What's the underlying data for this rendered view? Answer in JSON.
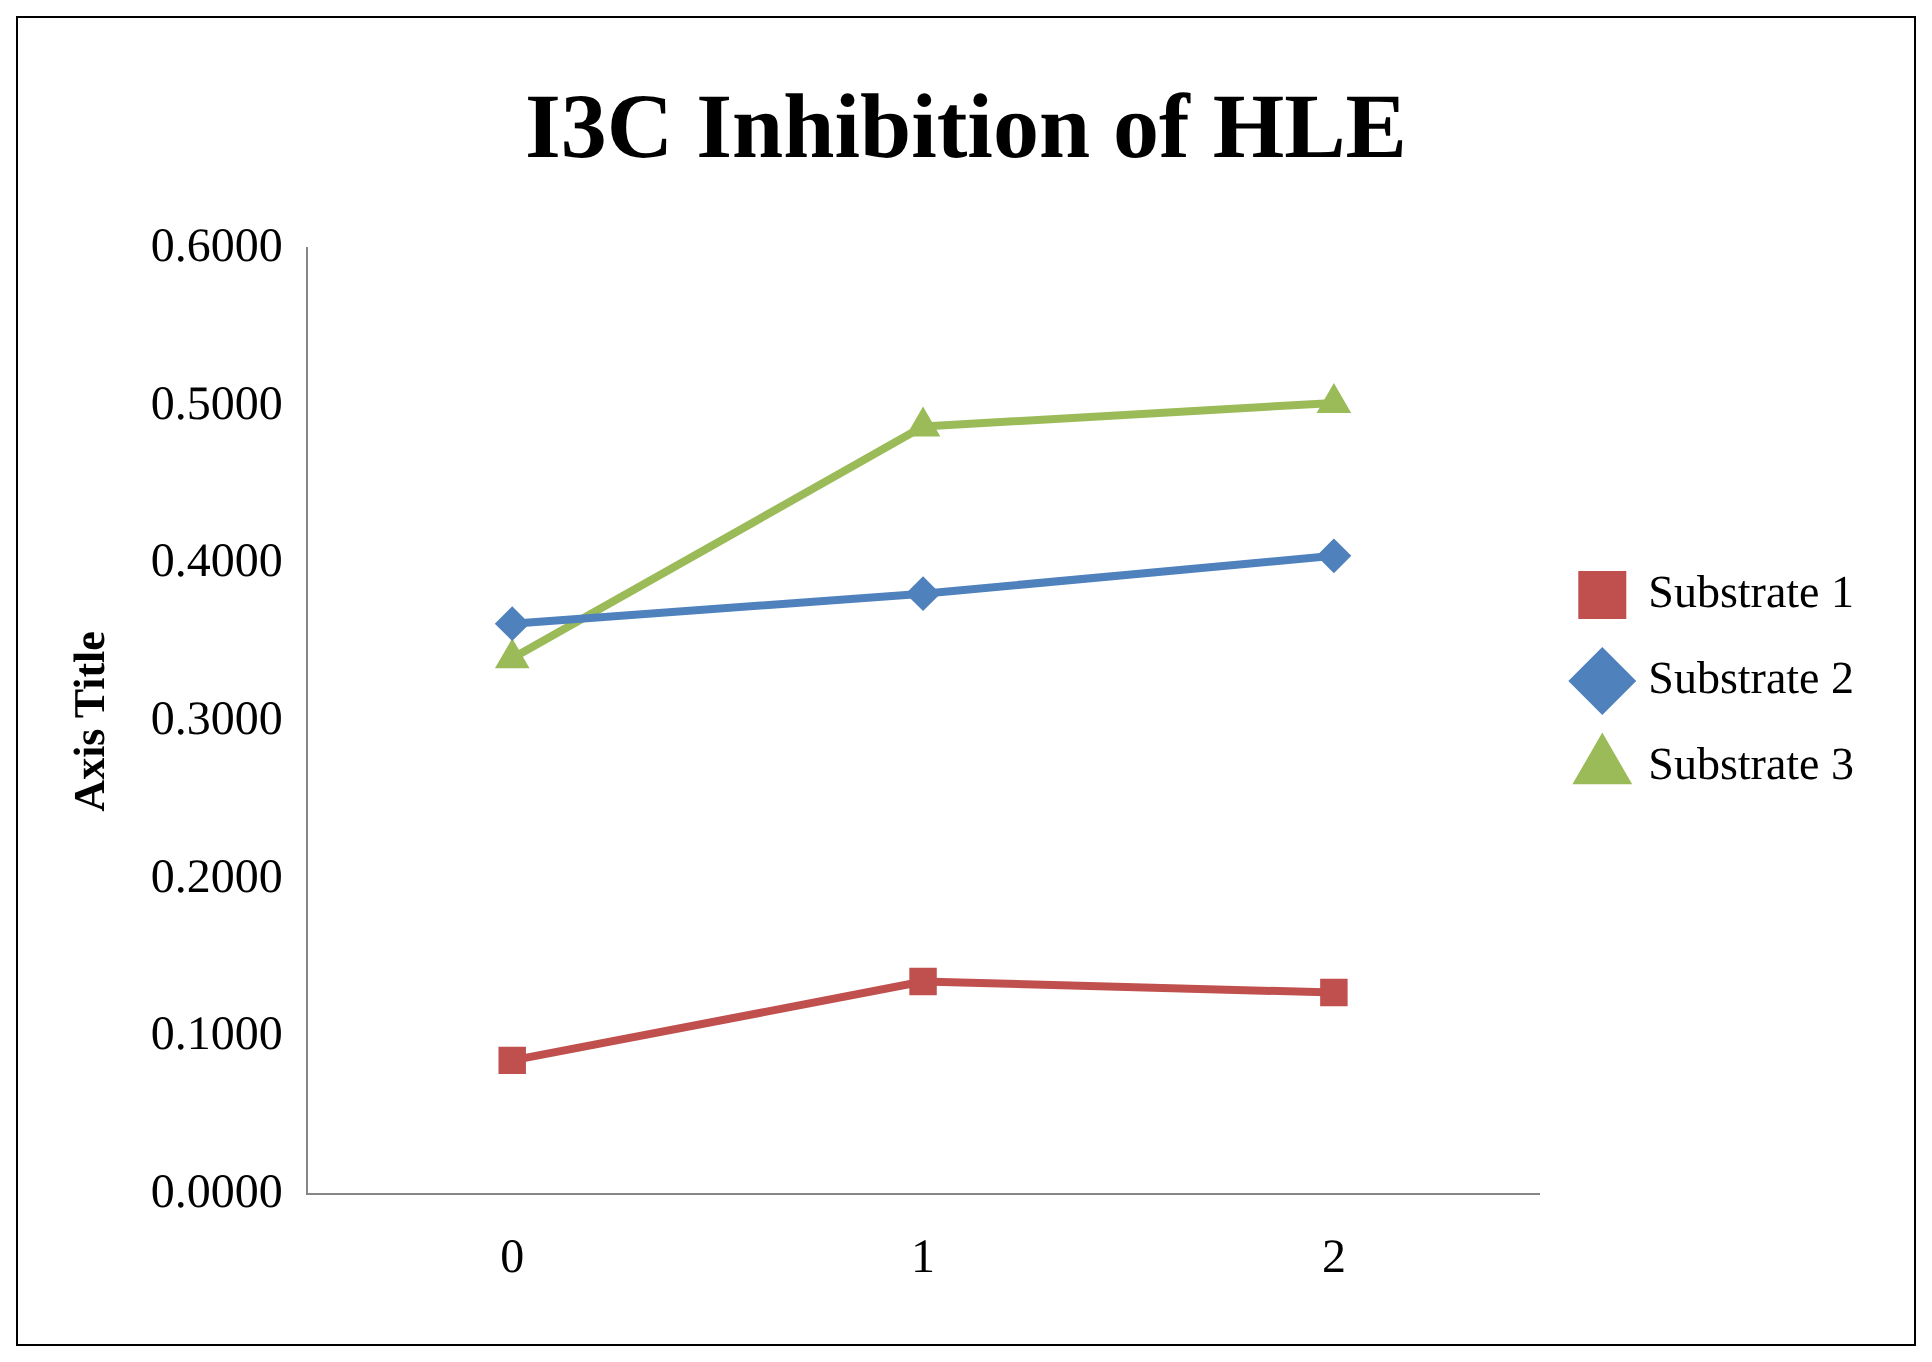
{
  "chart_data": {
    "type": "line",
    "title": "I3C Inhibition of HLE",
    "ylabel": "Axis Title",
    "categories": [
      "0",
      "1",
      "2"
    ],
    "series": [
      {
        "name": "Substrate 1",
        "color": "#c0504d",
        "marker": "square",
        "values": [
          0.085,
          0.135,
          0.128
        ]
      },
      {
        "name": "Substrate 2",
        "color": "#4f81bd",
        "marker": "diamond",
        "values": [
          0.362,
          0.381,
          0.405
        ]
      },
      {
        "name": "Substrate 3",
        "color": "#9bbb59",
        "marker": "triangle",
        "values": [
          0.34,
          0.487,
          0.502
        ]
      }
    ],
    "ylim": [
      0,
      0.6
    ],
    "yticks": [
      {
        "value": 0,
        "label": "0.0000"
      },
      {
        "value": 0.1,
        "label": "0.1000"
      },
      {
        "value": 0.2,
        "label": "0.2000"
      },
      {
        "value": 0.3,
        "label": "0.3000"
      },
      {
        "value": 0.4,
        "label": "0.4000"
      },
      {
        "value": 0.5,
        "label": "0.5000"
      },
      {
        "value": 0.6,
        "label": "0.6000"
      }
    ],
    "grid": false,
    "legend": "right",
    "line_style": "solid"
  }
}
